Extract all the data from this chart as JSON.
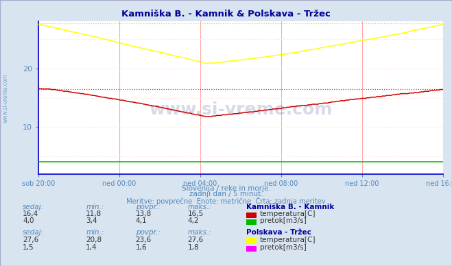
{
  "title": "Kamniška B. - Kamnik & Polskava - Tržec",
  "subtitle1": "Slovenija / reke in morje.",
  "subtitle2": "zadnji dan / 5 minut.",
  "subtitle3": "Meritve: povprečne  Enote: metrične  Črta: zadnja meritev",
  "bg_color": "#d8e4f0",
  "plot_bg_color": "#ffffff",
  "x_labels": [
    "sob 20:00",
    "ned 00:00",
    "ned 04:00",
    "ned 08:00",
    "ned 12:00",
    "ned 16:00"
  ],
  "x_ticks": [
    0,
    48,
    96,
    144,
    192,
    240
  ],
  "n_points": 289,
  "ylim": [
    2,
    28
  ],
  "yticks": [
    10,
    20
  ],
  "kamnik_temp_color": "#cc0000",
  "kamnik_flow_color": "#00bb00",
  "polskava_temp_color": "#ffff00",
  "polskava_flow_color": "#ff00ff",
  "ref_line_kamnik": 16.5,
  "ref_line_polskava": 27.6,
  "text_color": "#5588bb",
  "title_color": "#000099",
  "watermark": "www.si-vreme.com",
  "watermark_color": "#000066",
  "table_headers": [
    "sedaj:",
    "min.:",
    "povpr.:",
    "maks.:"
  ],
  "kamnik_row1": [
    "16,4",
    "11,8",
    "13,8",
    "16,5"
  ],
  "kamnik_row2": [
    "4,0",
    "3,4",
    "4,1",
    "4,2"
  ],
  "polskava_row1": [
    "27,6",
    "20,8",
    "23,6",
    "27,6"
  ],
  "polskava_row2": [
    "1,5",
    "1,4",
    "1,6",
    "1,8"
  ],
  "station1_name": "Kamniška B. - Kamnik",
  "station2_name": "Polskava - Tržec",
  "temp_label": "temperatura[C]",
  "flow_label": "pretok[m3/s]",
  "spine_color": "#0000cc",
  "grid_v_color": "#ffaaaa",
  "grid_h_color": "#ffdddd"
}
